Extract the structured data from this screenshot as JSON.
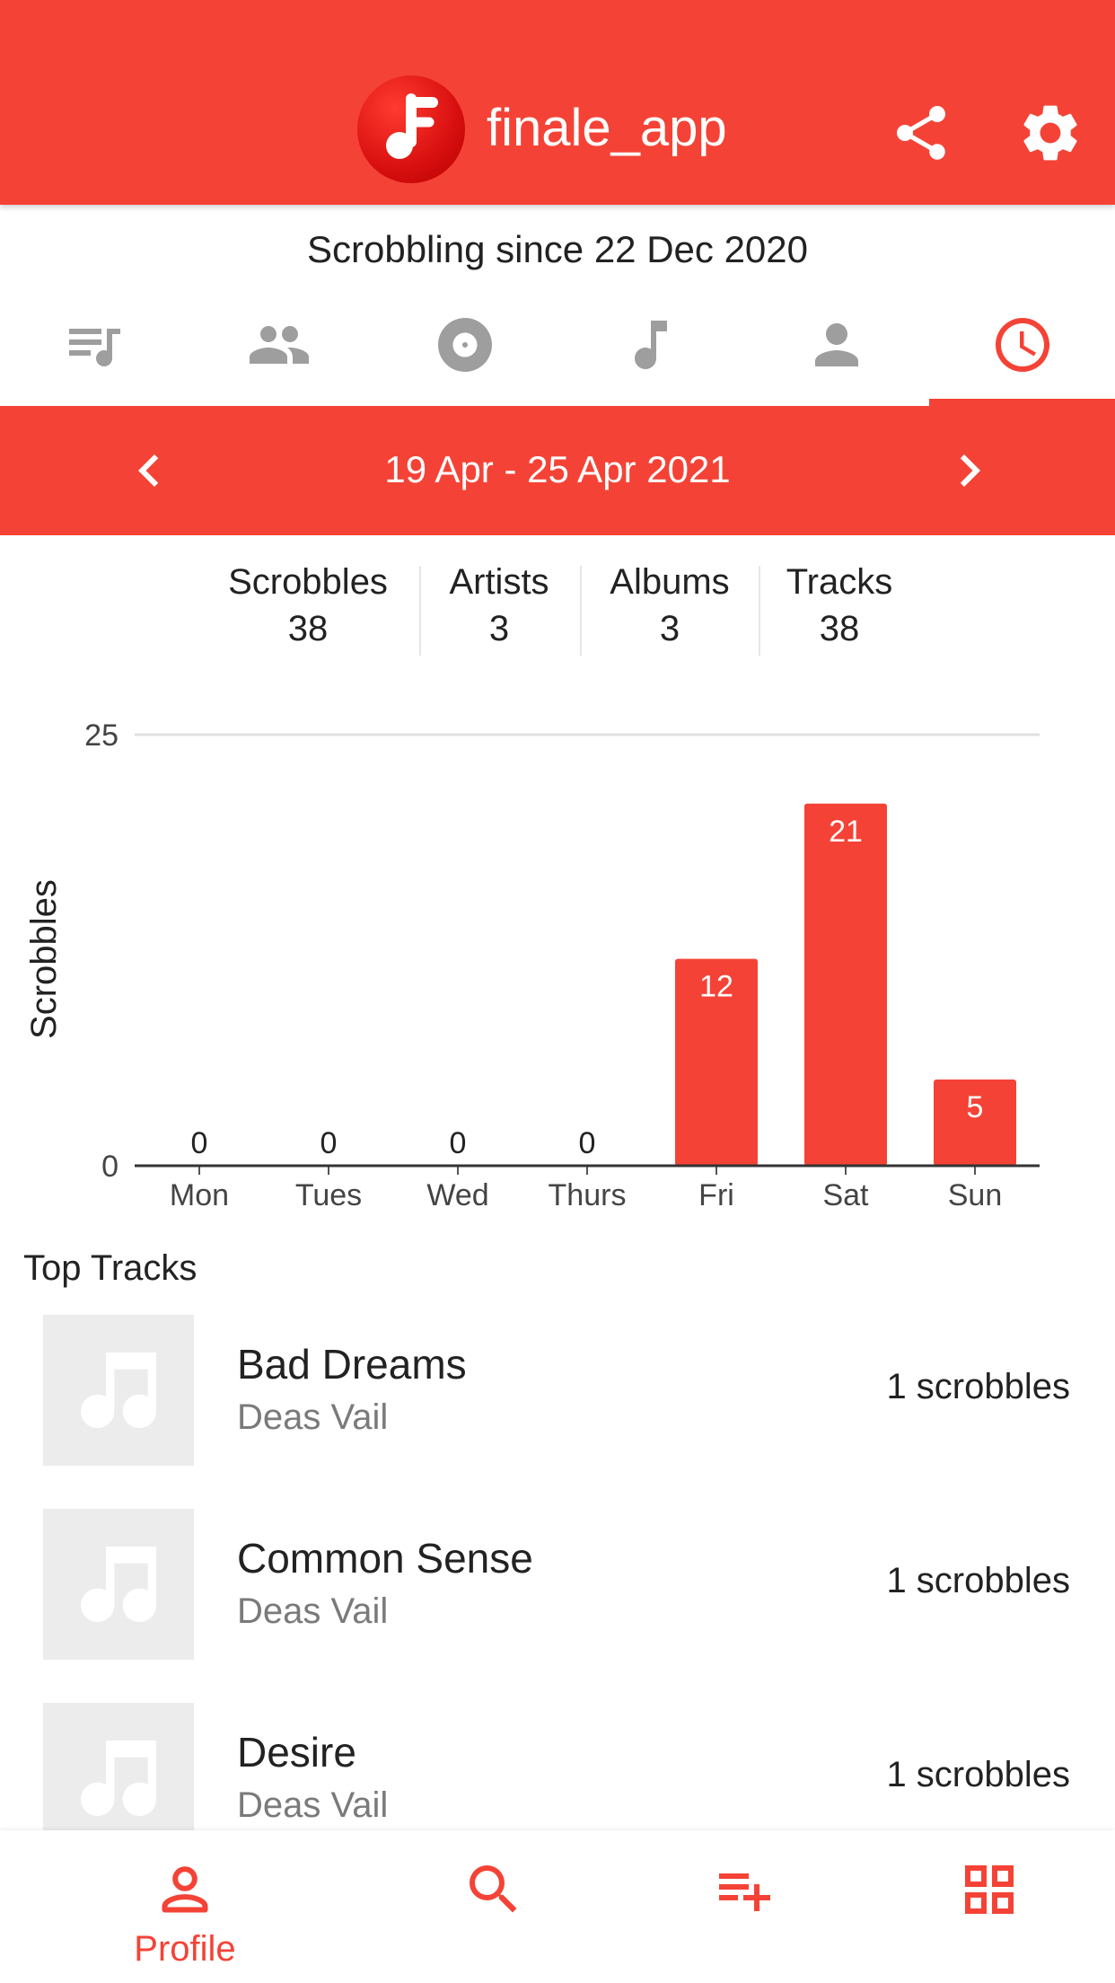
{
  "app": {
    "title": "finale_app"
  },
  "profile": {
    "since": "Scrobbling since 22 Dec 2020"
  },
  "tabs": [
    {
      "icon": "queue-music-icon"
    },
    {
      "icon": "people-icon"
    },
    {
      "icon": "album-icon"
    },
    {
      "icon": "music-note-icon"
    },
    {
      "icon": "person-icon"
    },
    {
      "icon": "clock-icon",
      "selected": true
    }
  ],
  "period": {
    "label": "19 Apr - 25 Apr 2021"
  },
  "stats": [
    {
      "label": "Scrobbles",
      "value": "38"
    },
    {
      "label": "Artists",
      "value": "3"
    },
    {
      "label": "Albums",
      "value": "3"
    },
    {
      "label": "Tracks",
      "value": "38"
    }
  ],
  "chart_data": {
    "type": "bar",
    "categories": [
      "Mon",
      "Tues",
      "Wed",
      "Thurs",
      "Fri",
      "Sat",
      "Sun"
    ],
    "values": [
      0,
      0,
      0,
      0,
      12,
      21,
      5
    ],
    "ylabel": "Scrobbles",
    "ylim": [
      0,
      25
    ],
    "yticks": [
      "0",
      "25"
    ],
    "grid": true,
    "bar_color": "#f44336"
  },
  "top_tracks": {
    "title": "Top Tracks",
    "items": [
      {
        "name": "Bad Dreams",
        "artist": "Deas Vail",
        "count": "1 scrobbles"
      },
      {
        "name": "Common Sense",
        "artist": "Deas Vail",
        "count": "1 scrobbles"
      },
      {
        "name": "Desire",
        "artist": "Deas Vail",
        "count": "1 scrobbles"
      }
    ]
  },
  "bottom_nav": [
    {
      "label": "Profile",
      "icon": "person-outline-icon"
    },
    {
      "label": "",
      "icon": "search-icon"
    },
    {
      "label": "",
      "icon": "playlist-add-icon"
    },
    {
      "label": "",
      "icon": "grid-icon"
    }
  ],
  "colors": {
    "accent": "#f44336",
    "tab_inactive": "#9e9e9e",
    "thumb_bg": "#ececec"
  }
}
